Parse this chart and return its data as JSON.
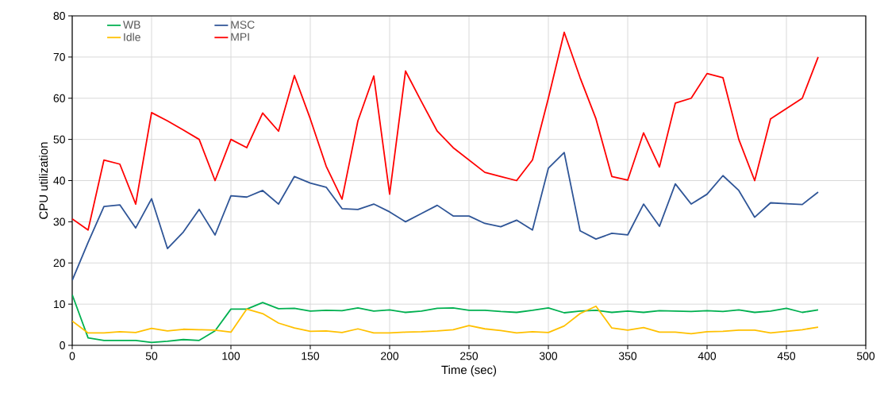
{
  "chart_data": {
    "type": "line",
    "xlabel": "Time (sec)",
    "ylabel": "CPU utilization",
    "x": [
      0,
      10,
      20,
      30,
      40,
      50,
      60,
      70,
      80,
      90,
      100,
      110,
      120,
      130,
      140,
      150,
      160,
      170,
      180,
      190,
      200,
      210,
      220,
      230,
      240,
      250,
      260,
      270,
      280,
      290,
      300,
      310,
      320,
      330,
      340,
      350,
      360,
      370,
      380,
      390,
      400,
      410,
      420,
      430,
      440,
      450,
      460,
      470
    ],
    "series": [
      {
        "name": "WB",
        "color": "#00b050",
        "values": [
          12.3,
          1.8,
          1.2,
          1.2,
          1.2,
          0.7,
          1,
          1.4,
          1.2,
          3.5,
          8.8,
          8.8,
          10.4,
          8.9,
          9,
          8.3,
          8.5,
          8.4,
          9.1,
          8.3,
          8.6,
          8,
          8.3,
          9,
          9.1,
          8.5,
          8.5,
          8.2,
          8,
          8.5,
          9.1,
          7.9,
          8.3,
          8.5,
          8,
          8.3,
          8,
          8.4,
          8.3,
          8.2,
          8.4,
          8.2,
          8.6,
          8,
          8.3,
          9,
          8,
          8.6
        ]
      },
      {
        "name": "MSC",
        "color": "#2f5597",
        "values": [
          15.8,
          25,
          33.7,
          34.1,
          28.5,
          35.6,
          23.5,
          27.5,
          33,
          26.8,
          36.3,
          36,
          37.6,
          34.3,
          41,
          39.4,
          38.4,
          33.2,
          33,
          34.3,
          32.4,
          30,
          32,
          34,
          31.4,
          31.4,
          29.6,
          28.8,
          30.4,
          28,
          43,
          46.8,
          27.8,
          25.8,
          27.2,
          26.8,
          34.3,
          28.9,
          39.2,
          34.3,
          36.7,
          41.2,
          37.6,
          31.1,
          34.6,
          34.4,
          34.2,
          37.2
        ]
      },
      {
        "name": "Idle",
        "color": "#ffc000",
        "values": [
          5.9,
          3,
          3,
          3.3,
          3.1,
          4.1,
          3.5,
          3.9,
          3.8,
          3.7,
          3.2,
          8.8,
          7.7,
          5.4,
          4.2,
          3.4,
          3.5,
          3.1,
          4,
          3,
          3,
          3.2,
          3.3,
          3.5,
          3.8,
          4.8,
          4,
          3.6,
          3,
          3.3,
          3.1,
          4.7,
          7.7,
          9.5,
          4.2,
          3.7,
          4.3,
          3.2,
          3.2,
          2.8,
          3.3,
          3.4,
          3.7,
          3.7,
          3,
          3.4,
          3.8,
          4.4
        ]
      },
      {
        "name": "MPI",
        "color": "#ff0000",
        "values": [
          30.7,
          28,
          45,
          44,
          34.3,
          56.5,
          54.5,
          52.3,
          50,
          40,
          50,
          48,
          56.4,
          52,
          65.5,
          55,
          43.5,
          35.5,
          54.5,
          65.4,
          36.7,
          66.6,
          59.2,
          52,
          48,
          45,
          42,
          41,
          40,
          45,
          60,
          76,
          65,
          55,
          41,
          40.1,
          51.6,
          43.3,
          58.8,
          60,
          66,
          65,
          50,
          40,
          55,
          57.5,
          60,
          70
        ]
      }
    ],
    "xlim": [
      0,
      500
    ],
    "ylim": [
      0,
      80
    ],
    "xticks": [
      0,
      50,
      100,
      150,
      200,
      250,
      300,
      350,
      400,
      450,
      500
    ],
    "yticks": [
      0,
      10,
      20,
      30,
      40,
      50,
      60,
      70,
      80
    ],
    "grid": true,
    "legend": "top left",
    "marker": "none",
    "line_style": "solid"
  }
}
